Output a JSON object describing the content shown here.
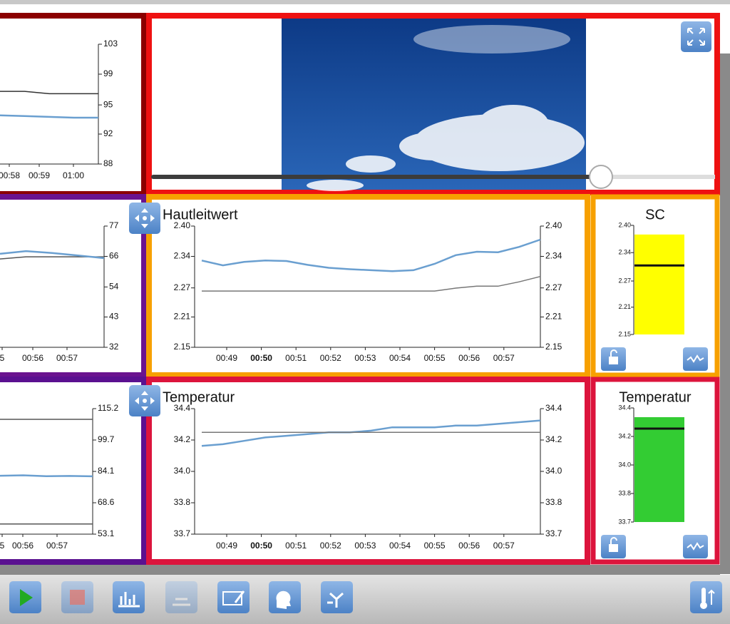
{
  "panels": [
    {
      "type": "line",
      "ylim": [
        88,
        103
      ],
      "yticks": [
        103,
        {
          "value": 99.25,
          "label": "99"
        },
        {
          "value": 95.4,
          "label": "95"
        },
        {
          "value": 91.75,
          "label": "92"
        },
        88
      ],
      "xticks": [
        "00:58",
        "00:59",
        "01:00"
      ],
      "series": [
        {
          "color": "#333333",
          "values": [
            97.1,
            97.1,
            96.8,
            96.8,
            96.8
          ]
        },
        {
          "color": "#6a9fd0",
          "values": [
            94.1,
            94.0,
            93.9,
            93.8,
            93.8
          ]
        }
      ]
    },
    {
      "type": "line",
      "ylim": [
        32,
        77
      ],
      "yticks": [
        77,
        {
          "value": 65.75,
          "label": "66"
        },
        {
          "value": 54.4,
          "label": "54"
        },
        {
          "value": 43.25,
          "label": "43"
        },
        32
      ],
      "xticks": [
        "5",
        "00:56",
        "00:57"
      ],
      "series": [
        {
          "color": "#555555",
          "values": [
            64.8,
            65.6,
            65.6,
            65.6,
            65.6
          ]
        },
        {
          "color": "#6a9fd0",
          "values": [
            66.7,
            67.7,
            67.0,
            66.1,
            65.1
          ]
        }
      ]
    },
    {
      "type": "line",
      "ylim": [
        53.1,
        115.2
      ],
      "yticks": [
        115.2,
        {
          "value": 99.675,
          "label": "99.7"
        },
        {
          "value": 84.13,
          "label": "84.1"
        },
        {
          "value": 68.625,
          "label": "68.6"
        },
        53.1
      ],
      "xticks": [
        "5",
        "00:56",
        "00:57"
      ],
      "series": [
        {
          "color": "#555555",
          "values": [
            109.9,
            109.9
          ]
        },
        {
          "color": "#6a9fd0",
          "values": [
            82.0,
            82.2,
            81.8,
            81.9,
            81.7
          ]
        },
        {
          "color": "#555555",
          "values": [
            58.1,
            58.1
          ]
        }
      ]
    },
    {
      "type": "line",
      "title": "Hautleitwert",
      "ylim": [
        2.15,
        2.4
      ],
      "yticks": [
        {
          "value": 2.4,
          "label": "2.40"
        },
        {
          "value": 2.3375,
          "label": "2.34"
        },
        {
          "value": 2.2725,
          "label": "2.27"
        },
        {
          "value": 2.2125,
          "label": "2.21"
        },
        2.15
      ],
      "xticks": [
        "00:49",
        "00:50",
        "00:51",
        "00:52",
        "00:53",
        "00:54",
        "00:55",
        "00:56",
        "00:57"
      ],
      "series": [
        {
          "color": "#6a9fd0",
          "values": [
            2.329,
            2.319,
            2.326,
            2.329,
            2.328,
            2.32,
            2.314,
            2.311,
            2.309,
            2.307,
            2.309,
            2.322,
            2.34,
            2.347,
            2.346,
            2.357,
            2.372
          ]
        },
        {
          "color": "#777777",
          "values": [
            2.266,
            2.266,
            2.266,
            2.266,
            2.266,
            2.266,
            2.266,
            2.266,
            2.266,
            2.266,
            2.266,
            2.266,
            2.272,
            2.276,
            2.276,
            2.285,
            2.296
          ]
        }
      ]
    },
    {
      "type": "bar",
      "title": "SC",
      "ylim": [
        2.15,
        2.4
      ],
      "yticks": [
        {
          "value": 2.4,
          "label": "2.40"
        },
        {
          "value": 2.3375,
          "label": "2.34"
        },
        {
          "value": 2.2725,
          "label": "2.27"
        },
        {
          "value": 2.2125,
          "label": "2.21"
        },
        2.15
      ],
      "value": 2.379,
      "marker": 2.308,
      "color": "#ffff00"
    },
    {
      "type": "line",
      "title": "Temperatur",
      "ylim": [
        33.66,
        34.4
      ],
      "yticks": [
        34.4,
        {
          "value": 34.215,
          "label": "34.2"
        },
        {
          "value": 34.03,
          "label": "34.0"
        },
        {
          "value": 33.845,
          "label": "33.8"
        },
        {
          "value": 33.66,
          "label": "33.7"
        }
      ],
      "xticks": [
        "00:49",
        "00:50",
        "00:51",
        "00:52",
        "00:53",
        "00:54",
        "00:55",
        "00:56",
        "00:57"
      ],
      "series": [
        {
          "color": "#6a9fd0",
          "values": [
            34.18,
            34.19,
            34.21,
            34.23,
            34.24,
            34.25,
            34.26,
            34.26,
            34.27,
            34.29,
            34.29,
            34.29,
            34.3,
            34.3,
            34.31,
            34.32,
            34.33
          ]
        },
        {
          "color": "#777777",
          "values": [
            34.26,
            34.26
          ]
        }
      ]
    },
    {
      "type": "bar",
      "title": "Temperatur",
      "ylim": [
        33.66,
        34.4
      ],
      "yticks": [
        34.4,
        {
          "value": 34.215,
          "label": "34.2"
        },
        {
          "value": 34.03,
          "label": "34.0"
        },
        {
          "value": 33.845,
          "label": "33.8"
        },
        {
          "value": 33.66,
          "label": "33.7"
        }
      ],
      "value": 34.34,
      "marker": 34.266,
      "color": "#33cc33"
    }
  ]
}
